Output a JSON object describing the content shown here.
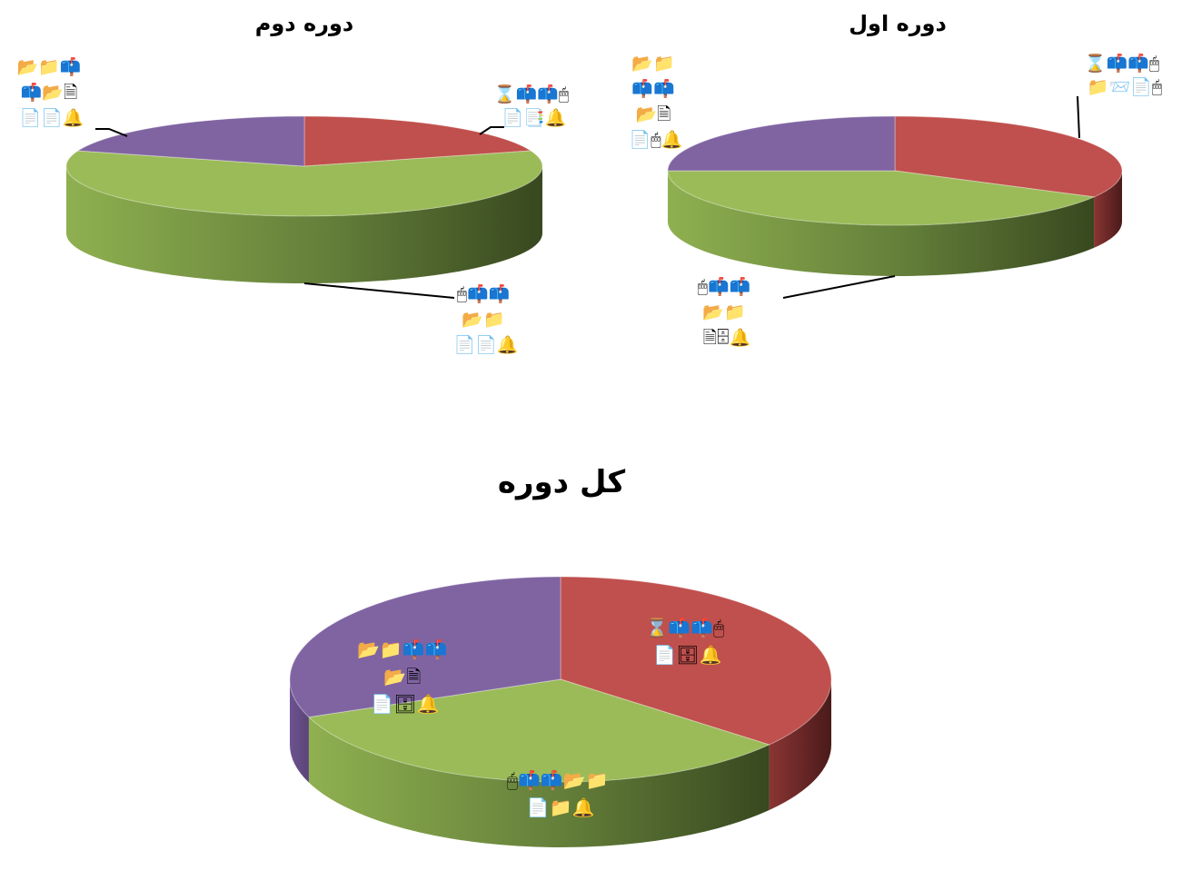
{
  "colors": {
    "red": "#c0504d",
    "green": "#9bbb59",
    "purple": "#8064a2"
  },
  "chart_data": [
    {
      "type": "pie",
      "style": "3d",
      "title": "دوره دوم",
      "series": [
        {
          "slices": [
            {
              "value": 20,
              "color": "red",
              "label": [
                "⌛📫📫🖱",
                "📄📑🔔"
              ]
            },
            {
              "value": 60,
              "color": "green",
              "label": [
                "🖱📫📫",
                "📂📁",
                "📄📄🔔"
              ]
            },
            {
              "value": 20,
              "color": "purple",
              "label": [
                "📂📁📫",
                "📫📂🗎",
                "📄📄🔔"
              ]
            }
          ]
        }
      ]
    },
    {
      "type": "pie",
      "style": "3d",
      "title": "دوره اول",
      "series": [
        {
          "slices": [
            {
              "value": 33,
              "color": "red",
              "label": [
                "⌛📫📫🖱",
                "📁📨📄🖱"
              ]
            },
            {
              "value": 42,
              "color": "green",
              "label": [
                "🖱📫📫",
                "📂📁",
                "🗎🗄🔔"
              ]
            },
            {
              "value": 25,
              "color": "purple",
              "label": [
                "📂📁",
                "📫📫",
                "📂🗎",
                "📄🖱🔔"
              ]
            }
          ]
        }
      ]
    },
    {
      "type": "pie",
      "style": "3d",
      "title": "کل دوره",
      "series": [
        {
          "slices": [
            {
              "value": 36,
              "color": "red",
              "label": [
                "⌛📫📫🖱",
                "📄🗄🔔"
              ]
            },
            {
              "value": 33,
              "color": "green",
              "label": [
                "🖱📫📫📂📁",
                "📄📁🔔"
              ]
            },
            {
              "value": 31,
              "color": "purple",
              "label": [
                "📂📁📫📫",
                "📂🗎",
                "📄🗄🔔"
              ]
            }
          ]
        }
      ]
    }
  ]
}
